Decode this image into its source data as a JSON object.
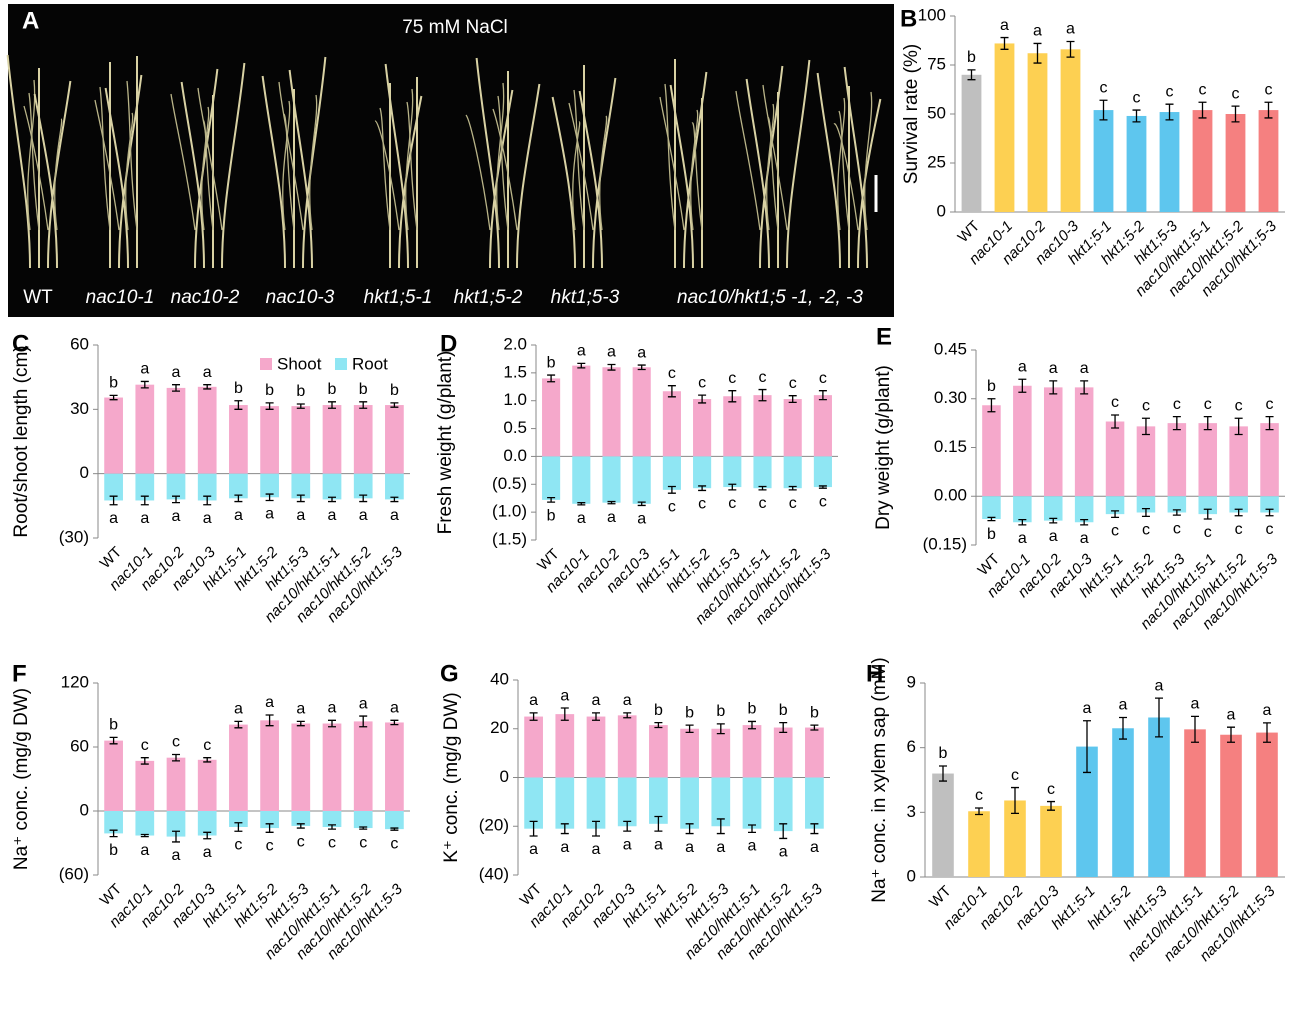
{
  "photo": {
    "label": "A",
    "title": "75 mM NaCl",
    "labels": [
      "WT",
      "nac10-1",
      "nac10-2",
      "nac10-3",
      "hkt1;5-1",
      "hkt1;5-2",
      "hkt1;5-3",
      "nac10/hkt1;5 -1, -2, -3"
    ]
  },
  "chart_data": [
    {
      "type": "bar",
      "label": "B",
      "ylabel": "Survival rate (%)",
      "categories": [
        "WT",
        "nac10-1",
        "nac10-2",
        "nac10-3",
        "hkt1;5-1",
        "hkt1;5-2",
        "hkt1;5-3",
        "nac10/hkt1;5-1",
        "nac10/hkt1;5-2",
        "nac10/hkt1;5-3"
      ],
      "ylim": [
        0,
        100
      ],
      "yticks": [
        0,
        25,
        50,
        75,
        100
      ],
      "series": [
        {
          "colors": [
            "#bfbfbf",
            "#fdd052",
            "#fdd052",
            "#fdd052",
            "#5ec6ee",
            "#5ec6ee",
            "#5ec6ee",
            "#f58080",
            "#f58080",
            "#f58080"
          ],
          "values": [
            70,
            86,
            81,
            83,
            52,
            49,
            51,
            52,
            50,
            52
          ],
          "errors": [
            2.5,
            3,
            5,
            4,
            5,
            3,
            4,
            4,
            4,
            4
          ],
          "letters": [
            "b",
            "a",
            "a",
            "a",
            "c",
            "c",
            "c",
            "c",
            "c",
            "c"
          ]
        }
      ]
    },
    {
      "type": "bar",
      "label": "C",
      "ylabel": "Root/shoot length (cm)",
      "legend": true,
      "categories": [
        "WT",
        "nac10-1",
        "nac10-2",
        "nac10-3",
        "hkt1;5-1",
        "hkt1;5-2",
        "hkt1;5-3",
        "nac10/hkt1;5-1",
        "nac10/hkt1;5-2",
        "nac10/hkt1;5-3"
      ],
      "ylim": [
        -30,
        60
      ],
      "yticks": [
        {
          "value": -30,
          "label": "(30)"
        },
        0,
        30,
        60
      ],
      "series": [
        {
          "name": "Shoot",
          "color": "#f5a8cb",
          "values": [
            35.5,
            41.5,
            40,
            40.5,
            32,
            31.5,
            31.5,
            32,
            32,
            32
          ],
          "errors": [
            1,
            1.5,
            1.5,
            1,
            2,
            1.5,
            1,
            1.5,
            1.5,
            1
          ],
          "letters": [
            "b",
            "a",
            "a",
            "a",
            "b",
            "b",
            "b",
            "b",
            "b",
            "b"
          ]
        },
        {
          "name": "Root",
          "color": "#8fe6f3",
          "values": [
            -12.5,
            -12.5,
            -12,
            -12.5,
            -11.5,
            -11,
            -11.5,
            -12,
            -11.5,
            -12
          ],
          "errors": [
            2,
            2,
            1.5,
            2,
            1.5,
            1.5,
            1.5,
            1,
            1.5,
            1
          ],
          "letters": [
            "a",
            "a",
            "a",
            "a",
            "a",
            "a",
            "a",
            "a",
            "a",
            "a"
          ]
        }
      ]
    },
    {
      "type": "bar",
      "label": "D",
      "ylabel": "Fresh weight (g/plant)",
      "categories": [
        "WT",
        "nac10-1",
        "nac10-2",
        "nac10-3",
        "hkt1;5-1",
        "hkt1;5-2",
        "hkt1;5-3",
        "nac10/hkt1;5-1",
        "nac10/hkt1;5-2",
        "nac10/hkt1;5-3"
      ],
      "ylim": [
        -1.5,
        2.0
      ],
      "yticks": [
        {
          "value": -1.5,
          "label": "(1.5)"
        },
        {
          "value": -1.0,
          "label": "(1.0)"
        },
        {
          "value": -0.5,
          "label": "(0.5)"
        },
        {
          "value": 0,
          "label": "0.0"
        },
        {
          "value": 0.5,
          "label": "0.5"
        },
        {
          "value": 1.0,
          "label": "1.0"
        },
        {
          "value": 1.5,
          "label": "1.5"
        },
        {
          "value": 2.0,
          "label": "2.0"
        }
      ],
      "series": [
        {
          "color": "#f5a8cb",
          "values": [
            1.4,
            1.63,
            1.6,
            1.6,
            1.17,
            1.03,
            1.08,
            1.1,
            1.03,
            1.1
          ],
          "errors": [
            0.06,
            0.04,
            0.05,
            0.04,
            0.1,
            0.07,
            0.1,
            0.1,
            0.06,
            0.08
          ],
          "letters": [
            "b",
            "a",
            "a",
            "a",
            "c",
            "c",
            "c",
            "c",
            "c",
            "c"
          ]
        },
        {
          "color": "#8fe6f3",
          "values": [
            -0.78,
            -0.85,
            -0.83,
            -0.85,
            -0.6,
            -0.57,
            -0.55,
            -0.57,
            -0.57,
            -0.55
          ],
          "errors": [
            0.04,
            0.02,
            0.02,
            0.03,
            0.06,
            0.04,
            0.05,
            0.03,
            0.03,
            0.02
          ],
          "letters": [
            "b",
            "a",
            "a",
            "a",
            "c",
            "c",
            "c",
            "c",
            "c",
            "c"
          ]
        }
      ]
    },
    {
      "type": "bar",
      "label": "E",
      "ylabel": "Dry weight (g/plant)",
      "categories": [
        "WT",
        "nac10-1",
        "nac10-2",
        "nac10-3",
        "hkt1;5-1",
        "hkt1;5-2",
        "hkt1;5-3",
        "nac10/hkt1;5-1",
        "nac10/hkt1;5-2",
        "nac10/hkt1;5-3"
      ],
      "ylim": [
        -0.15,
        0.45
      ],
      "yticks": [
        {
          "value": -0.15,
          "label": "(0.15)"
        },
        {
          "value": 0,
          "label": "0.00"
        },
        0.15,
        {
          "value": 0.3,
          "label": "0.30"
        },
        0.45
      ],
      "series": [
        {
          "color": "#f5a8cb",
          "values": [
            0.28,
            0.34,
            0.335,
            0.335,
            0.23,
            0.215,
            0.225,
            0.225,
            0.215,
            0.225
          ],
          "errors": [
            0.02,
            0.02,
            0.02,
            0.02,
            0.02,
            0.025,
            0.02,
            0.02,
            0.025,
            0.02
          ],
          "letters": [
            "b",
            "a",
            "a",
            "a",
            "c",
            "c",
            "c",
            "c",
            "c",
            "c"
          ]
        },
        {
          "color": "#8fe6f3",
          "values": [
            -0.07,
            -0.08,
            -0.075,
            -0.08,
            -0.055,
            -0.05,
            -0.05,
            -0.055,
            -0.05,
            -0.05
          ],
          "errors": [
            0.005,
            0.008,
            0.007,
            0.008,
            0.01,
            0.012,
            0.008,
            0.015,
            0.01,
            0.01
          ],
          "letters": [
            "b",
            "a",
            "a",
            "a",
            "c",
            "c",
            "c",
            "c",
            "c",
            "c"
          ]
        }
      ]
    },
    {
      "type": "bar",
      "label": "F",
      "ylabel": "Na⁺ conc. (mg/g DW)",
      "categories": [
        "WT",
        "nac10-1",
        "nac10-2",
        "nac10-3",
        "hkt1;5-1",
        "hkt1;5-2",
        "hkt1;5-3",
        "nac10/hkt1;5-1",
        "nac10/hkt1;5-2",
        "nac10/hkt1;5-3"
      ],
      "ylim": [
        -60,
        120
      ],
      "yticks": [
        {
          "value": -60,
          "label": "(60)"
        },
        0,
        60,
        120
      ],
      "series": [
        {
          "color": "#f5a8cb",
          "values": [
            66,
            47,
            50,
            48,
            81,
            85,
            82,
            82,
            84,
            83
          ],
          "errors": [
            3,
            3,
            3,
            2,
            3,
            5,
            2,
            3,
            5,
            2
          ],
          "letters": [
            "b",
            "c",
            "c",
            "c",
            "a",
            "a",
            "a",
            "a",
            "a",
            "a"
          ]
        },
        {
          "color": "#8fe6f3",
          "values": [
            -21,
            -23,
            -24,
            -23,
            -15,
            -16,
            -14,
            -15,
            -16,
            -17
          ],
          "errors": [
            3,
            1,
            5,
            3,
            4,
            4,
            2,
            2,
            1,
            1
          ],
          "letters": [
            "b",
            "a",
            "a",
            "a",
            "c",
            "c",
            "c",
            "c",
            "c",
            "c"
          ]
        }
      ]
    },
    {
      "type": "bar",
      "label": "G",
      "ylabel": "K⁺ conc. (mg/g DW)",
      "categories": [
        "WT",
        "nac10-1",
        "nac10-2",
        "nac10-3",
        "hkt1;5-1",
        "hkt1;5-2",
        "hkt1;5-3",
        "nac10/hkt1;5-1",
        "nac10/hkt1;5-2",
        "nac10/hkt1;5-3"
      ],
      "ylim": [
        -40,
        40
      ],
      "yticks": [
        {
          "value": -40,
          "label": "(40)"
        },
        {
          "value": -20,
          "label": "(20)"
        },
        0,
        20,
        40
      ],
      "series": [
        {
          "color": "#f5a8cb",
          "values": [
            25,
            26,
            25,
            25.5,
            21.5,
            20,
            20,
            21.5,
            20.5,
            20.5
          ],
          "errors": [
            1.5,
            2.5,
            1.5,
            1,
            1,
            1.5,
            2,
            1.5,
            2,
            1
          ],
          "letters": [
            "a",
            "a",
            "a",
            "a",
            "b",
            "b",
            "b",
            "b",
            "b",
            "b"
          ]
        },
        {
          "color": "#8fe6f3",
          "values": [
            -21,
            -21,
            -21,
            -20,
            -19,
            -21,
            -20,
            -21,
            -22,
            -21
          ],
          "errors": [
            3,
            2,
            3,
            2,
            3,
            2,
            3,
            1.5,
            3,
            2
          ],
          "letters": [
            "a",
            "a",
            "a",
            "a",
            "a",
            "a",
            "a",
            "a",
            "a",
            "a"
          ]
        }
      ]
    },
    {
      "type": "bar",
      "label": "H",
      "ylabel": "Na⁺ conc. in xylem sap (mM)",
      "categories": [
        "WT",
        "nac10-1",
        "nac10-2",
        "nac10-3",
        "hkt1;5-1",
        "hkt1;5-2",
        "hkt1;5-3",
        "nac10/hkt1;5-1",
        "nac10/hkt1;5-2",
        "nac10/hkt1;5-3"
      ],
      "ylim": [
        0,
        9
      ],
      "yticks": [
        0,
        3,
        6,
        9
      ],
      "series": [
        {
          "colors": [
            "#bfbfbf",
            "#fdd052",
            "#fdd052",
            "#fdd052",
            "#5ec6ee",
            "#5ec6ee",
            "#5ec6ee",
            "#f58080",
            "#f58080",
            "#f58080"
          ],
          "values": [
            4.8,
            3.05,
            3.55,
            3.3,
            6.05,
            6.9,
            7.4,
            6.85,
            6.6,
            6.7
          ],
          "errors": [
            0.35,
            0.15,
            0.6,
            0.2,
            1.2,
            0.5,
            0.9,
            0.6,
            0.35,
            0.45
          ],
          "letters": [
            "b",
            "c",
            "c",
            "c",
            "a",
            "a",
            "a",
            "a",
            "a",
            "a"
          ]
        }
      ]
    }
  ]
}
